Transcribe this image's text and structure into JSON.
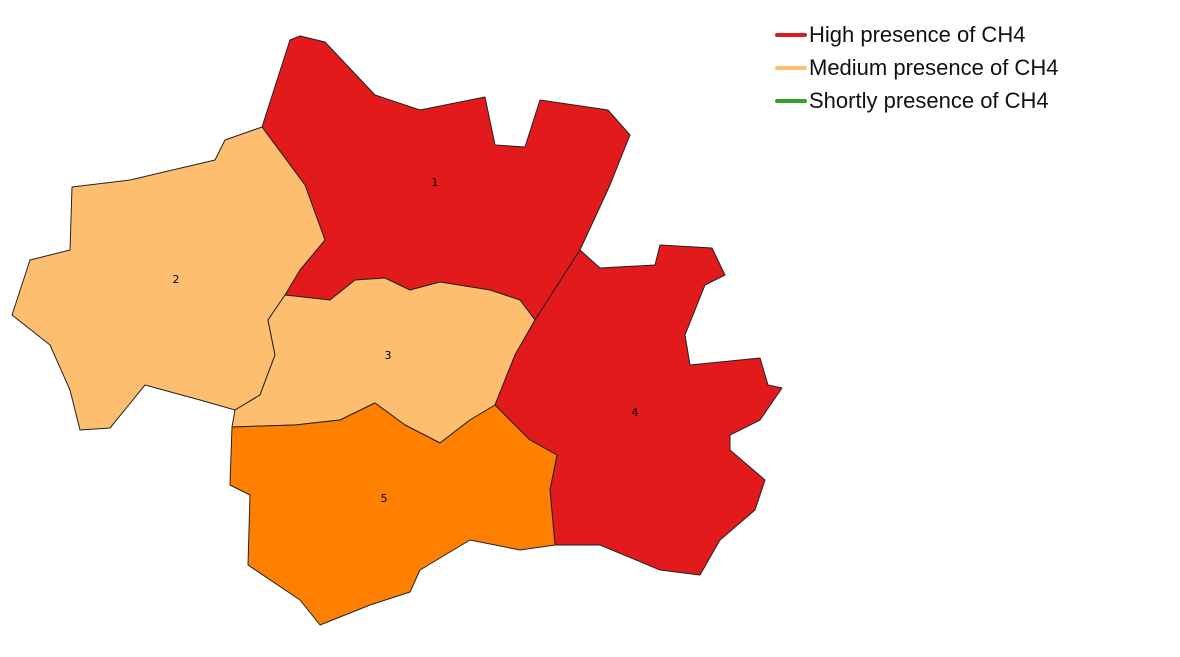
{
  "regions": [
    {
      "label": "1",
      "color": "#e31a1c"
    },
    {
      "label": "2",
      "color": "#fdbf6f"
    },
    {
      "label": "3",
      "color": "#fdbf6f"
    },
    {
      "label": "4",
      "color": "#e31a1c"
    },
    {
      "label": "5",
      "color": "#ff7f00"
    }
  ],
  "legend": [
    {
      "label": "High presence of CH4",
      "color": "#e31a1c"
    },
    {
      "label": "Medium presence of CH4",
      "color": "#fdbf6f"
    },
    {
      "label": "Shortly presence of CH4",
      "color": "#33a02c"
    }
  ]
}
